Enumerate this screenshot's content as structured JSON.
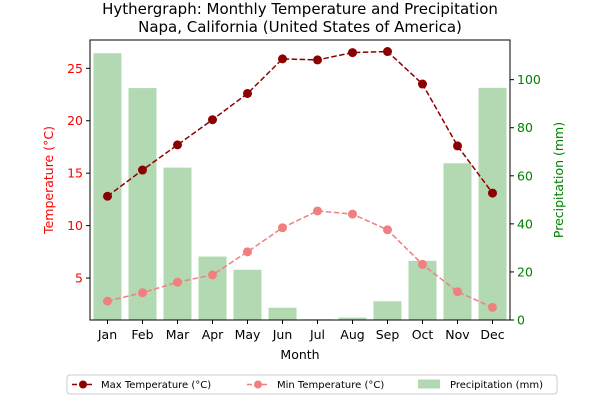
{
  "chart_data": {
    "type": "bar+line",
    "title": "Hythergraph: Monthly Temperature and Precipitation",
    "subtitle": "Napa, California (United States of America)",
    "xlabel": "Month",
    "ylabel_left": "Temperature (°C)",
    "ylabel_right": "Precipitation (mm)",
    "categories": [
      "Jan",
      "Feb",
      "Mar",
      "Apr",
      "May",
      "Jun",
      "Jul",
      "Aug",
      "Sep",
      "Oct",
      "Nov",
      "Dec"
    ],
    "ylim_left": [
      1.0,
      27.7
    ],
    "ylim_right": [
      0,
      116.5
    ],
    "yticks_left": [
      5,
      10,
      15,
      20,
      25
    ],
    "yticks_right": [
      0,
      20,
      40,
      60,
      80,
      100
    ],
    "series": [
      {
        "name": "Max Temperature (°C)",
        "axis": "left",
        "kind": "line",
        "style": "dashed",
        "marker": "circle",
        "color": "#8b0000",
        "values": [
          12.8,
          15.3,
          17.7,
          20.1,
          22.6,
          25.9,
          25.8,
          26.5,
          26.6,
          23.5,
          17.6,
          13.1
        ]
      },
      {
        "name": "Min Temperature (°C)",
        "axis": "left",
        "kind": "line",
        "style": "dashed",
        "marker": "circle",
        "color": "#f08080",
        "values": [
          2.8,
          3.6,
          4.6,
          5.3,
          7.5,
          9.8,
          11.4,
          11.1,
          9.6,
          6.3,
          3.7,
          2.2
        ]
      },
      {
        "name": "Precipitation (mm)",
        "axis": "right",
        "kind": "bar",
        "color": "#b2d9b2",
        "values": [
          111,
          96.5,
          63.4,
          26.4,
          20.9,
          5.1,
          0.3,
          1.0,
          7.8,
          24.6,
          65.2,
          96.6
        ]
      }
    ],
    "legend_position": "bottom-center",
    "grid": false,
    "colors": {
      "left_axis": "#ff0000",
      "right_axis": "#008000",
      "axes": "#000000"
    }
  }
}
